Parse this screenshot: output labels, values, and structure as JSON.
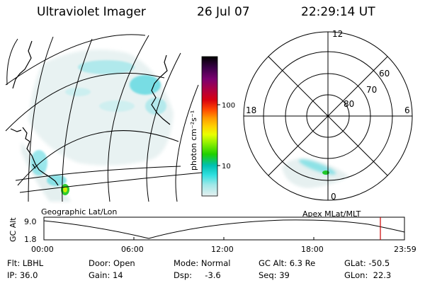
{
  "header": {
    "instrument": "Ultraviolet Imager",
    "date": "26 Jul 07",
    "time": "22:29:14 UT"
  },
  "colorbar": {
    "label": "photon cm⁻²s⁻¹",
    "ticks": [
      "100",
      "10"
    ],
    "colors": [
      "#000000",
      "#3a0048",
      "#7a0070",
      "#b00040",
      "#d80010",
      "#ff4800",
      "#ff9900",
      "#ffd000",
      "#e8ff00",
      "#90f000",
      "#20d000",
      "#00c0b0",
      "#30e0e0",
      "#a0e8e8",
      "#e6f0f0"
    ]
  },
  "left_map": {
    "caption": "Geographic Lat/Lon"
  },
  "polar_plot": {
    "caption": "Apex MLat/MLT",
    "mlt_labels": {
      "top": "12",
      "left": "18",
      "right": "6",
      "bottom": "0"
    },
    "lat_labels": [
      "60",
      "70",
      "80"
    ]
  },
  "timeline": {
    "ylabel": "GC Alt",
    "ymax": "9.0",
    "ymin": "1.8",
    "x_ticks": [
      "00:00",
      "06:00",
      "12:00",
      "18:00",
      "23:59"
    ],
    "current_marker_color": "#cc0000"
  },
  "info": {
    "filter": "Flt: LBHL",
    "ip": "IP: 36.0",
    "door": "Door: Open",
    "gain": "Gain: 14",
    "mode": "Mode: Normal",
    "dsp": "Dsp:     -3.6",
    "gc_alt": "GC Alt: 6.3 Re",
    "seq": "Seq: 39",
    "glat": "GLat: -50.5",
    "glon": "GLon:  22.3"
  }
}
